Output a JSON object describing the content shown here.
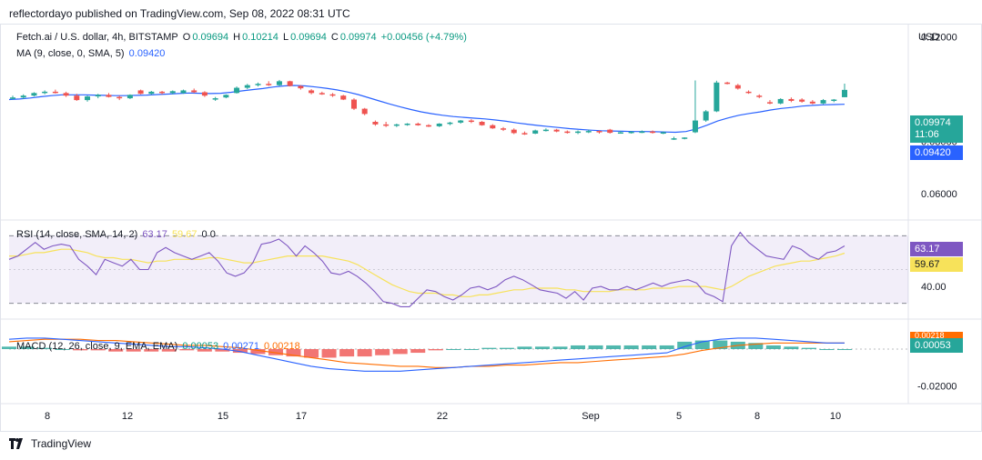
{
  "header": {
    "published": "reflectordayo published on TradingView.com, Sep 08, 2022 08:31 UTC"
  },
  "footer": {
    "brand": "TradingView"
  },
  "symbol": {
    "name": "Fetch.ai / U.S. dollar, 4h, BITSTAMP",
    "open_label": "O",
    "open": "0.09694",
    "high_label": "H",
    "high": "0.10214",
    "low_label": "L",
    "low": "0.09694",
    "close_label": "C",
    "close": "0.09974",
    "change": "+0.00456 (+4.79%)"
  },
  "ma_legend": {
    "label": "MA (9, close, 0, SMA, 5)",
    "value": "0.09420"
  },
  "rsi_legend": {
    "label": "RSI (14, close, SMA, 14, 2)",
    "value": "63.17",
    "ma_value": "59.67",
    "extra": "0  0"
  },
  "macd_legend": {
    "label": "MACD (12, 26, close, 9, EMA, EMA)",
    "macd": "0.00053",
    "signal": "0.00271",
    "hist": "0.00218"
  },
  "axis": {
    "currency": "USD",
    "price_ticks": [
      "0.12000",
      "0.08000",
      "0.06000"
    ],
    "rsi_ticks": [
      "40.00"
    ],
    "macd_ticks": [
      "-0.02000"
    ],
    "time_ticks": [
      "8",
      "12",
      "15",
      "17",
      "22",
      "Sep",
      "5",
      "8",
      "10"
    ]
  },
  "tags": {
    "last_price": "0.09974",
    "countdown": "11:06",
    "ma_value": "0.09420",
    "rsi": "63.17",
    "rsi_ma": "59.67",
    "macd": "0.00053",
    "hist_hidden": "0.00218"
  },
  "colors": {
    "up": "#26a69a",
    "down": "#ef5350",
    "ma": "#2962ff",
    "rsi": "#7e57c2",
    "rsi_ma": "#f7e25a",
    "macd": "#2962ff",
    "signal": "#ff6d00"
  },
  "chart_data": {
    "type": "candlestick",
    "timeframe": "4h",
    "ylim": [
      0.05,
      0.125
    ],
    "candles": [
      {
        "o": 0.0965,
        "h": 0.0975,
        "l": 0.096,
        "c": 0.0968
      },
      {
        "o": 0.0968,
        "h": 0.098,
        "l": 0.0962,
        "c": 0.0975
      },
      {
        "o": 0.0975,
        "h": 0.0988,
        "l": 0.0972,
        "c": 0.0985
      },
      {
        "o": 0.0985,
        "h": 0.0995,
        "l": 0.098,
        "c": 0.099
      },
      {
        "o": 0.099,
        "h": 0.0998,
        "l": 0.0983,
        "c": 0.0985
      },
      {
        "o": 0.0985,
        "h": 0.099,
        "l": 0.097,
        "c": 0.0975
      },
      {
        "o": 0.0975,
        "h": 0.0982,
        "l": 0.0955,
        "c": 0.0958
      },
      {
        "o": 0.0958,
        "h": 0.0975,
        "l": 0.0952,
        "c": 0.0972
      },
      {
        "o": 0.0972,
        "h": 0.0982,
        "l": 0.0965,
        "c": 0.0978
      },
      {
        "o": 0.0978,
        "h": 0.0985,
        "l": 0.0968,
        "c": 0.097
      },
      {
        "o": 0.097,
        "h": 0.0975,
        "l": 0.0958,
        "c": 0.0965
      },
      {
        "o": 0.0965,
        "h": 0.098,
        "l": 0.0962,
        "c": 0.0978
      },
      {
        "o": 0.0995,
        "h": 0.0998,
        "l": 0.098,
        "c": 0.0982
      },
      {
        "o": 0.0982,
        "h": 0.0993,
        "l": 0.0978,
        "c": 0.099
      },
      {
        "o": 0.099,
        "h": 0.0993,
        "l": 0.098,
        "c": 0.0985
      },
      {
        "o": 0.0985,
        "h": 0.0995,
        "l": 0.098,
        "c": 0.0992
      },
      {
        "o": 0.0985,
        "h": 0.0998,
        "l": 0.0982,
        "c": 0.0995
      },
      {
        "o": 0.0995,
        "h": 0.1002,
        "l": 0.0985,
        "c": 0.0988
      },
      {
        "o": 0.0988,
        "h": 0.0992,
        "l": 0.097,
        "c": 0.0975
      },
      {
        "o": 0.096,
        "h": 0.097,
        "l": 0.0955,
        "c": 0.0965
      },
      {
        "o": 0.0968,
        "h": 0.098,
        "l": 0.0965,
        "c": 0.0978
      },
      {
        "o": 0.0985,
        "h": 0.101,
        "l": 0.0983,
        "c": 0.1005
      },
      {
        "o": 0.1005,
        "h": 0.102,
        "l": 0.1,
        "c": 0.1015
      },
      {
        "o": 0.1015,
        "h": 0.1025,
        "l": 0.101,
        "c": 0.102
      },
      {
        "o": 0.102,
        "h": 0.103,
        "l": 0.1012,
        "c": 0.1015
      },
      {
        "o": 0.1015,
        "h": 0.1035,
        "l": 0.1012,
        "c": 0.103
      },
      {
        "o": 0.103,
        "h": 0.1032,
        "l": 0.101,
        "c": 0.1012
      },
      {
        "o": 0.1012,
        "h": 0.1015,
        "l": 0.0998,
        "c": 0.1003
      },
      {
        "o": 0.0995,
        "h": 0.1,
        "l": 0.098,
        "c": 0.0985
      },
      {
        "o": 0.0985,
        "h": 0.099,
        "l": 0.0978,
        "c": 0.098
      },
      {
        "o": 0.098,
        "h": 0.0985,
        "l": 0.097,
        "c": 0.0975
      },
      {
        "o": 0.0975,
        "h": 0.0978,
        "l": 0.0958,
        "c": 0.096
      },
      {
        "o": 0.096,
        "h": 0.0965,
        "l": 0.092,
        "c": 0.0925
      },
      {
        "o": 0.0925,
        "h": 0.0928,
        "l": 0.09,
        "c": 0.0905
      },
      {
        "o": 0.0875,
        "h": 0.088,
        "l": 0.086,
        "c": 0.0865
      },
      {
        "o": 0.0865,
        "h": 0.0875,
        "l": 0.0855,
        "c": 0.086
      },
      {
        "o": 0.086,
        "h": 0.0868,
        "l": 0.0855,
        "c": 0.0865
      },
      {
        "o": 0.0865,
        "h": 0.087,
        "l": 0.086,
        "c": 0.0868
      },
      {
        "o": 0.0868,
        "h": 0.0872,
        "l": 0.086,
        "c": 0.0862
      },
      {
        "o": 0.0862,
        "h": 0.0866,
        "l": 0.0855,
        "c": 0.0858
      },
      {
        "o": 0.0858,
        "h": 0.087,
        "l": 0.0855,
        "c": 0.0868
      },
      {
        "o": 0.0868,
        "h": 0.0875,
        "l": 0.0862,
        "c": 0.0872
      },
      {
        "o": 0.0872,
        "h": 0.0882,
        "l": 0.0868,
        "c": 0.088
      },
      {
        "o": 0.088,
        "h": 0.0885,
        "l": 0.087,
        "c": 0.0875
      },
      {
        "o": 0.0875,
        "h": 0.0878,
        "l": 0.086,
        "c": 0.0862
      },
      {
        "o": 0.0862,
        "h": 0.0866,
        "l": 0.0848,
        "c": 0.085
      },
      {
        "o": 0.085,
        "h": 0.0855,
        "l": 0.084,
        "c": 0.0845
      },
      {
        "o": 0.0845,
        "h": 0.085,
        "l": 0.0828,
        "c": 0.0832
      },
      {
        "o": 0.0832,
        "h": 0.0838,
        "l": 0.0825,
        "c": 0.083
      },
      {
        "o": 0.083,
        "h": 0.0845,
        "l": 0.0828,
        "c": 0.0842
      },
      {
        "o": 0.0842,
        "h": 0.085,
        "l": 0.0838,
        "c": 0.0845
      },
      {
        "o": 0.0845,
        "h": 0.0848,
        "l": 0.0835,
        "c": 0.0838
      },
      {
        "o": 0.0838,
        "h": 0.0842,
        "l": 0.083,
        "c": 0.0835
      },
      {
        "o": 0.0835,
        "h": 0.0842,
        "l": 0.0828,
        "c": 0.0838
      },
      {
        "o": 0.0838,
        "h": 0.0845,
        "l": 0.0832,
        "c": 0.084
      },
      {
        "o": 0.084,
        "h": 0.0842,
        "l": 0.083,
        "c": 0.0835
      },
      {
        "o": 0.0845,
        "h": 0.0848,
        "l": 0.083,
        "c": 0.0833
      },
      {
        "o": 0.0833,
        "h": 0.084,
        "l": 0.083,
        "c": 0.0835
      },
      {
        "o": 0.0835,
        "h": 0.084,
        "l": 0.083,
        "c": 0.0837
      },
      {
        "o": 0.0837,
        "h": 0.0842,
        "l": 0.0832,
        "c": 0.0838
      },
      {
        "o": 0.0838,
        "h": 0.0842,
        "l": 0.083,
        "c": 0.0833
      },
      {
        "o": 0.0833,
        "h": 0.0838,
        "l": 0.0828,
        "c": 0.0835
      },
      {
        "o": 0.081,
        "h": 0.0818,
        "l": 0.0806,
        "c": 0.0812
      },
      {
        "o": 0.0812,
        "h": 0.0816,
        "l": 0.0808,
        "c": 0.0815
      },
      {
        "o": 0.0835,
        "h": 0.1033,
        "l": 0.0832,
        "c": 0.088
      },
      {
        "o": 0.088,
        "h": 0.092,
        "l": 0.0875,
        "c": 0.0915
      },
      {
        "o": 0.0915,
        "h": 0.1032,
        "l": 0.0912,
        "c": 0.1025
      },
      {
        "o": 0.1025,
        "h": 0.1028,
        "l": 0.1018,
        "c": 0.1022
      },
      {
        "o": 0.1015,
        "h": 0.102,
        "l": 0.0998,
        "c": 0.1002
      },
      {
        "o": 0.099,
        "h": 0.0995,
        "l": 0.0982,
        "c": 0.0985
      },
      {
        "o": 0.0975,
        "h": 0.098,
        "l": 0.0965,
        "c": 0.097
      },
      {
        "o": 0.095,
        "h": 0.0958,
        "l": 0.0942,
        "c": 0.0948
      },
      {
        "o": 0.0945,
        "h": 0.0965,
        "l": 0.0942,
        "c": 0.0962
      },
      {
        "o": 0.0962,
        "h": 0.0968,
        "l": 0.095,
        "c": 0.0955
      },
      {
        "o": 0.096,
        "h": 0.0965,
        "l": 0.0948,
        "c": 0.0952
      },
      {
        "o": 0.0952,
        "h": 0.0958,
        "l": 0.0942,
        "c": 0.0945
      },
      {
        "o": 0.0945,
        "h": 0.0962,
        "l": 0.0942,
        "c": 0.0958
      },
      {
        "o": 0.0958,
        "h": 0.0962,
        "l": 0.095,
        "c": 0.096
      },
      {
        "o": 0.0969,
        "h": 0.1021,
        "l": 0.0969,
        "c": 0.0997
      }
    ],
    "ma": [
      0.096,
      0.0962,
      0.0966,
      0.0971,
      0.0975,
      0.0978,
      0.0978,
      0.0978,
      0.0977,
      0.0976,
      0.0975,
      0.0975,
      0.0976,
      0.0977,
      0.0979,
      0.0981,
      0.0983,
      0.0985,
      0.0984,
      0.0983,
      0.0984,
      0.0988,
      0.0993,
      0.0998,
      0.1002,
      0.1008,
      0.1012,
      0.1014,
      0.1012,
      0.1008,
      0.1003,
      0.0997,
      0.0989,
      0.0979,
      0.0967,
      0.0955,
      0.0943,
      0.0932,
      0.0922,
      0.0913,
      0.0906,
      0.09,
      0.0895,
      0.0892,
      0.0889,
      0.0886,
      0.0882,
      0.0877,
      0.0871,
      0.0866,
      0.0861,
      0.0857,
      0.0853,
      0.0849,
      0.0846,
      0.0843,
      0.0841,
      0.084,
      0.0839,
      0.0838,
      0.0838,
      0.0837,
      0.0836,
      0.0835,
      0.0838,
      0.0848,
      0.0862,
      0.0878,
      0.089,
      0.09,
      0.0907,
      0.0913,
      0.092,
      0.0926,
      0.093,
      0.0935,
      0.0938,
      0.094,
      0.0941,
      0.0942
    ],
    "rsi": {
      "ylim": [
        25,
        75
      ],
      "upper": 70,
      "mid": 50,
      "lower": 30,
      "values": [
        56,
        58,
        62,
        66,
        62,
        64,
        65,
        64,
        56,
        52,
        47,
        56,
        54,
        52,
        56,
        50,
        50,
        60,
        63,
        60,
        58,
        56,
        58,
        60,
        55,
        48,
        46,
        48,
        54,
        65,
        66,
        68,
        64,
        58,
        64,
        60,
        55,
        48,
        47,
        49,
        46,
        42,
        37,
        31,
        30,
        28,
        28,
        33,
        38,
        37,
        34,
        32,
        35,
        39,
        40,
        38,
        40,
        44,
        46,
        44,
        41,
        38,
        37,
        36,
        33,
        37,
        32,
        39,
        40,
        38,
        38,
        40,
        38,
        40,
        42,
        40,
        42,
        43,
        44,
        42,
        36,
        34,
        31,
        64,
        72,
        66,
        62,
        58,
        57,
        56,
        64,
        62,
        58,
        56,
        60,
        61,
        64
      ],
      "ma": [
        58,
        58,
        59,
        60,
        60,
        61,
        62,
        62,
        61,
        60,
        58,
        57,
        57,
        56,
        56,
        55,
        54,
        55,
        55,
        56,
        56,
        56,
        56,
        57,
        57,
        56,
        55,
        54,
        54,
        55,
        56,
        57,
        58,
        58,
        58,
        58,
        58,
        57,
        56,
        55,
        53,
        50,
        47,
        44,
        41,
        39,
        37,
        36,
        36,
        36,
        35,
        35,
        34,
        34,
        35,
        35,
        36,
        37,
        38,
        38,
        39,
        39,
        39,
        39,
        38,
        38,
        37,
        37,
        37,
        37,
        38,
        38,
        38,
        38,
        39,
        39,
        39,
        40,
        40,
        40,
        40,
        39,
        38,
        40,
        43,
        46,
        48,
        50,
        52,
        53,
        54,
        55,
        55,
        56,
        57,
        58,
        59.67
      ]
    },
    "macd": {
      "ylim": [
        -0.004,
        0.002
      ],
      "macd": [
        0.0008,
        0.0009,
        0.0009,
        0.0008,
        0.0007,
        0.0006,
        0.0005,
        0.0004,
        0.0003,
        0.0002,
        0.0002,
        0.0001,
        0.0,
        -0.0002,
        -0.0005,
        -0.0008,
        -0.0011,
        -0.0014,
        -0.0016,
        -0.0017,
        -0.0018,
        -0.0018,
        -0.0018,
        -0.0017,
        -0.0016,
        -0.0015,
        -0.0014,
        -0.0013,
        -0.0012,
        -0.0011,
        -0.001,
        -0.0009,
        -0.0008,
        -0.0007,
        -0.0006,
        -0.0005,
        -0.0004,
        -0.0003,
        0.0002,
        0.0006,
        0.0008,
        0.0009,
        0.0009,
        0.0008,
        0.0007,
        0.0006,
        0.0005,
        0.0005
      ],
      "signal": [
        0.0006,
        0.0007,
        0.0008,
        0.0008,
        0.0008,
        0.0007,
        0.0007,
        0.0006,
        0.0005,
        0.0004,
        0.0003,
        0.0003,
        0.0002,
        0.0001,
        -0.0001,
        -0.0003,
        -0.0005,
        -0.0007,
        -0.0009,
        -0.0011,
        -0.0012,
        -0.0013,
        -0.0014,
        -0.0014,
        -0.0015,
        -0.0015,
        -0.0014,
        -0.0014,
        -0.0013,
        -0.0013,
        -0.0012,
        -0.0011,
        -0.0011,
        -0.001,
        -0.0009,
        -0.0008,
        -0.0007,
        -0.0006,
        -0.0004,
        -0.0001,
        0.0001,
        0.0003,
        0.0004,
        0.0005,
        0.0005,
        0.0005,
        0.0005,
        0.0005
      ]
    }
  }
}
